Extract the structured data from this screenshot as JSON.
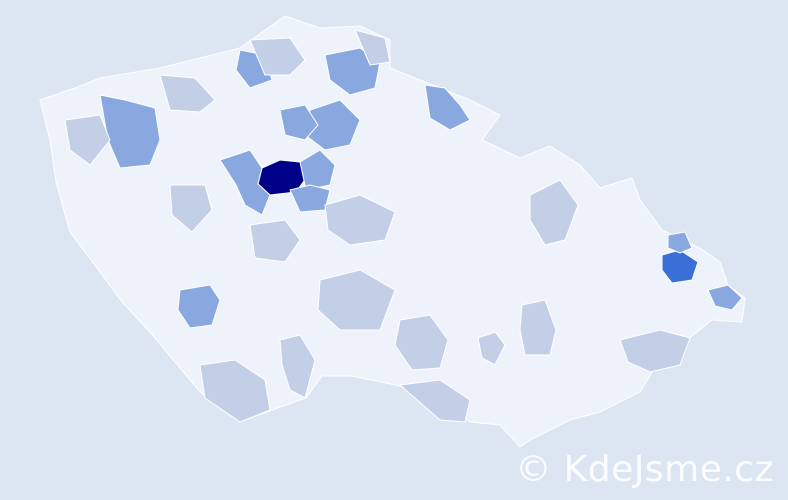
{
  "map": {
    "watermark": "© KdeJsme.cz",
    "colors": {
      "background": "#dce6f2",
      "level_0": "#eef2fa",
      "level_1": "#c3cfe7",
      "level_2": "#8aa8e0",
      "level_3": "#3a6fd8",
      "level_4": "#000088",
      "border": "#ffffff"
    },
    "shaded_region_levels": [
      4,
      2,
      2,
      2,
      2,
      2,
      2,
      2,
      2,
      2,
      2,
      3,
      2,
      2,
      1,
      1,
      1,
      1,
      1,
      1,
      1,
      1,
      1,
      1,
      1,
      1,
      1,
      1,
      1,
      1
    ]
  }
}
